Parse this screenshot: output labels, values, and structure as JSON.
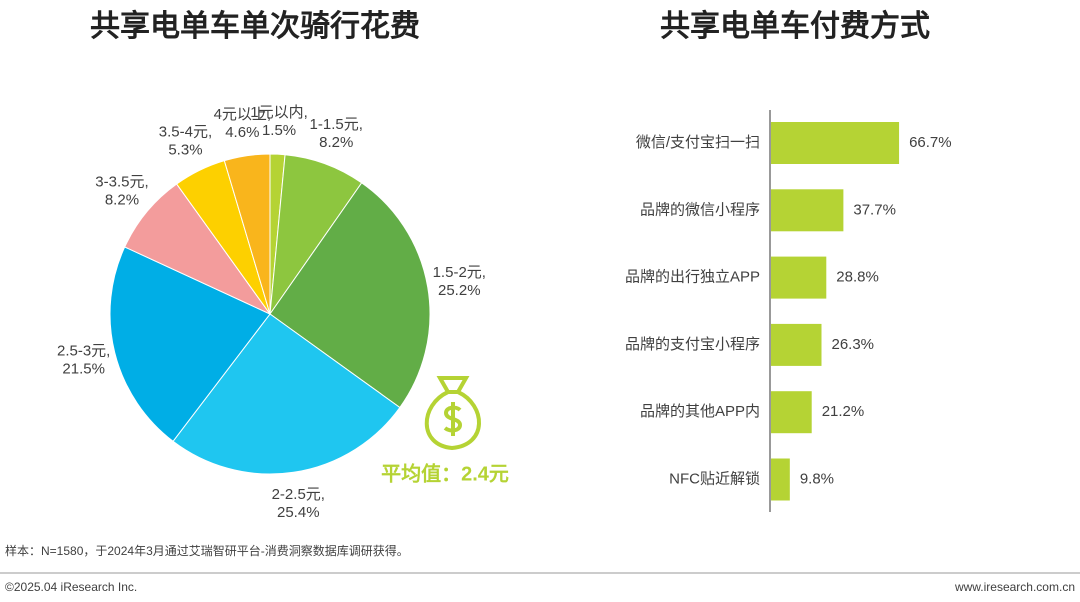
{
  "chart_data": [
    {
      "type": "pie",
      "title": "共享电单车单次骑行花费",
      "categories": [
        "1元以内,",
        "1-1.5元,",
        "1.5-2元,",
        "2-2.5元,",
        "2.5-3元,",
        "3-3.5元,",
        "3.5-4元,",
        "4元以上,"
      ],
      "values": [
        1.5,
        8.2,
        25.2,
        25.4,
        21.5,
        8.2,
        5.3,
        4.6
      ],
      "value_labels": [
        "1.5%",
        "8.2%",
        "25.2%",
        "25.4%",
        "21.5%",
        "8.2%",
        "5.3%",
        "4.6%"
      ],
      "colors": [
        "#b5d334",
        "#8dc63f",
        "#62ad47",
        "#1fc6f0",
        "#00aee6",
        "#f39c9c",
        "#fdd000",
        "#f9b51c"
      ],
      "annotation": "平均值：2.4元"
    },
    {
      "type": "hbar",
      "title": "共享电单车付费方式",
      "categories": [
        "微信/支付宝扫一扫",
        "品牌的微信小程序",
        "品牌的出行独立APP",
        "品牌的支付宝小程序",
        "品牌的其他APP内",
        "NFC贴近解锁"
      ],
      "values": [
        66.7,
        37.7,
        28.8,
        26.3,
        21.2,
        9.8
      ],
      "value_labels": [
        "66.7%",
        "37.7%",
        "28.8%",
        "26.3%",
        "21.2%",
        "9.8%"
      ],
      "color": "#b5d334"
    }
  ],
  "note": "样本：N=1580，于2024年3月通过艾瑞智研平台-消费洞察数据库调研获得。",
  "footer": {
    "left": "©2025.04 iResearch Inc.",
    "right": "www.iresearch.com.cn"
  }
}
